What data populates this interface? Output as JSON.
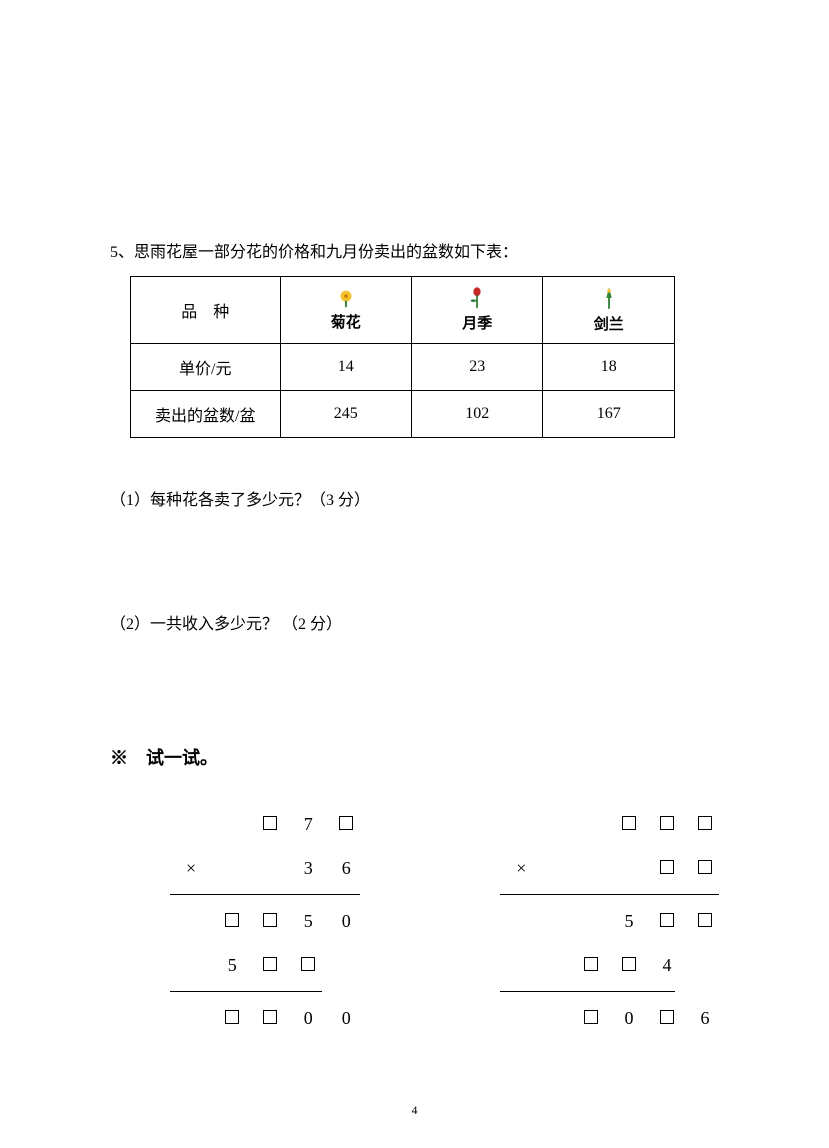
{
  "question": {
    "number": "5、",
    "intro": "思雨花屋一部分花的价格和九月份卖出的盆数如下表：",
    "table": {
      "headers": {
        "variety": "品　种",
        "flowers": [
          {
            "label": "菊花",
            "icon": "chrysanthemum"
          },
          {
            "label": "月季",
            "icon": "rose"
          },
          {
            "label": "剑兰",
            "icon": "orchid"
          }
        ]
      },
      "rows": [
        {
          "label": "单价/元",
          "values": [
            "14",
            "23",
            "18"
          ]
        },
        {
          "label": "卖出的盆数/盆",
          "values": [
            "245",
            "102",
            "167"
          ]
        }
      ]
    },
    "sub_questions": [
      "（1）每种花各卖了多少元？（3 分）",
      "（2）一共收入多少元？ （2 分）"
    ]
  },
  "try_section": {
    "title_prefix": "※　",
    "title": "试一试。",
    "problems": [
      {
        "rows": [
          {
            "cells": [
              "□",
              "7",
              "□"
            ],
            "op": null
          },
          {
            "cells": [
              "3",
              "6"
            ],
            "op": "×"
          },
          "rule",
          {
            "cells": [
              "□",
              "□",
              "5",
              "0"
            ],
            "op": null
          },
          {
            "cells": [
              "5",
              "□",
              "□",
              ""
            ],
            "op": null,
            "short": true
          },
          "short-rule",
          {
            "cells": [
              "□",
              "□",
              "0",
              "0"
            ],
            "op": null
          }
        ]
      },
      {
        "rows": [
          {
            "cells": [
              "□",
              "□",
              "□"
            ],
            "op": null
          },
          {
            "cells": [
              "□",
              "□"
            ],
            "op": "×"
          },
          "rule",
          {
            "cells": [
              "5",
              "□",
              "□"
            ],
            "op": null
          },
          {
            "cells": [
              "□",
              "□",
              "4",
              ""
            ],
            "op": null,
            "short": true
          },
          "short-rule",
          {
            "cells": [
              "□",
              "0",
              "□",
              "6"
            ],
            "op": null
          }
        ]
      }
    ]
  },
  "page_number": "4"
}
